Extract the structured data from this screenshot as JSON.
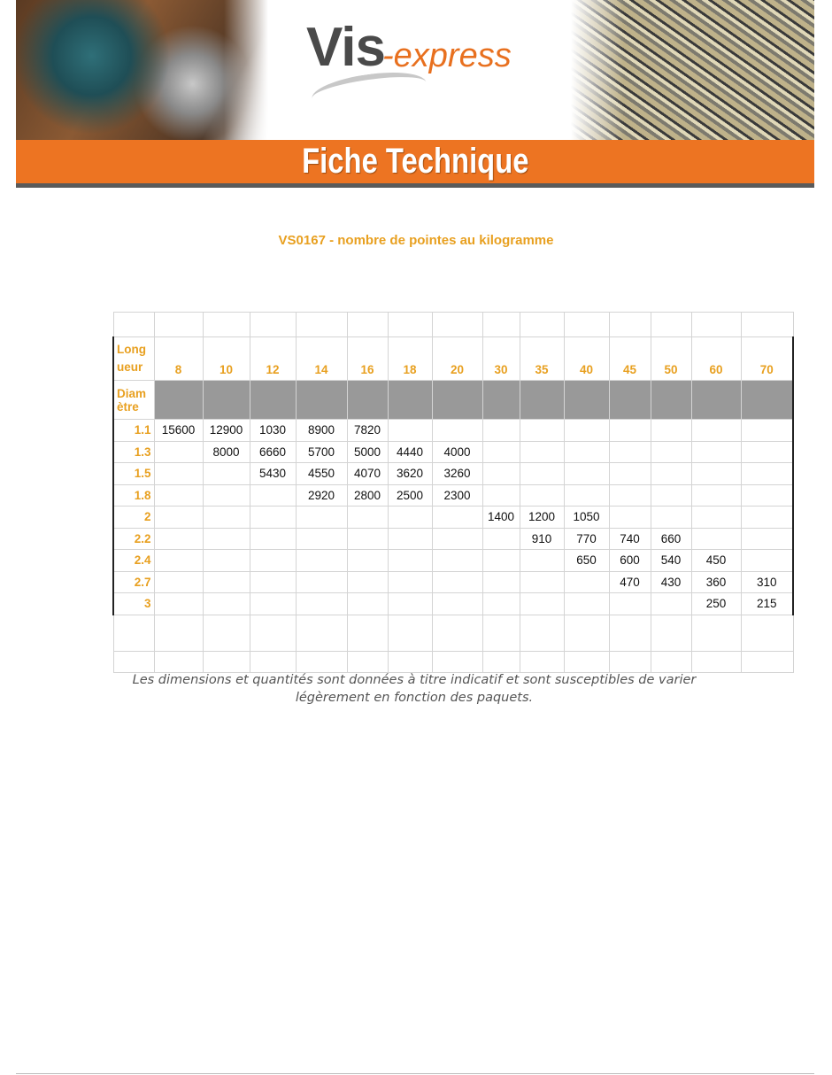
{
  "header": {
    "logo_main": "Vis",
    "logo_suffix": "-express",
    "banner_title": "Fiche Technique",
    "colors": {
      "orange": "#ed7422",
      "accent_text": "#e8a020",
      "header_gray": "#999999"
    }
  },
  "document": {
    "title": "VS0167 - nombre de pointes au kilogramme",
    "note": "Les dimensions et quantités sont données à titre indicatif et sont susceptibles de varier légèrement en fonction des paquets."
  },
  "table": {
    "length_label": "Long ueur",
    "diameter_label": "Diam ètre",
    "lengths": [
      "8",
      "10",
      "12",
      "14",
      "16",
      "18",
      "20",
      "30",
      "35",
      "40",
      "45",
      "50",
      "60",
      "70"
    ],
    "rows": [
      {
        "diameter": "1.1",
        "values": [
          "15600",
          "12900",
          "1030",
          "8900",
          "7820",
          "",
          "",
          "",
          "",
          "",
          "",
          "",
          "",
          ""
        ]
      },
      {
        "diameter": "1.3",
        "values": [
          "",
          "8000",
          "6660",
          "5700",
          "5000",
          "4440",
          "4000",
          "",
          "",
          "",
          "",
          "",
          "",
          ""
        ]
      },
      {
        "diameter": "1.5",
        "values": [
          "",
          "",
          "5430",
          "4550",
          "4070",
          "3620",
          "3260",
          "",
          "",
          "",
          "",
          "",
          "",
          ""
        ]
      },
      {
        "diameter": "1.8",
        "values": [
          "",
          "",
          "",
          "2920",
          "2800",
          "2500",
          "2300",
          "",
          "",
          "",
          "",
          "",
          "",
          ""
        ]
      },
      {
        "diameter": "2",
        "values": [
          "",
          "",
          "",
          "",
          "",
          "",
          "",
          "1400",
          "1200",
          "1050",
          "",
          "",
          "",
          ""
        ]
      },
      {
        "diameter": "2.2",
        "values": [
          "",
          "",
          "",
          "",
          "",
          "",
          "",
          "",
          "910",
          "770",
          "740",
          "660",
          "",
          ""
        ]
      },
      {
        "diameter": "2.4",
        "values": [
          "",
          "",
          "",
          "",
          "",
          "",
          "",
          "",
          "",
          "650",
          "600",
          "540",
          "450",
          ""
        ]
      },
      {
        "diameter": "2.7",
        "values": [
          "",
          "",
          "",
          "",
          "",
          "",
          "",
          "",
          "",
          "",
          "470",
          "430",
          "360",
          "310"
        ]
      },
      {
        "diameter": "3",
        "values": [
          "",
          "",
          "",
          "",
          "",
          "",
          "",
          "",
          "",
          "",
          "",
          "",
          "250",
          "215"
        ]
      }
    ]
  }
}
